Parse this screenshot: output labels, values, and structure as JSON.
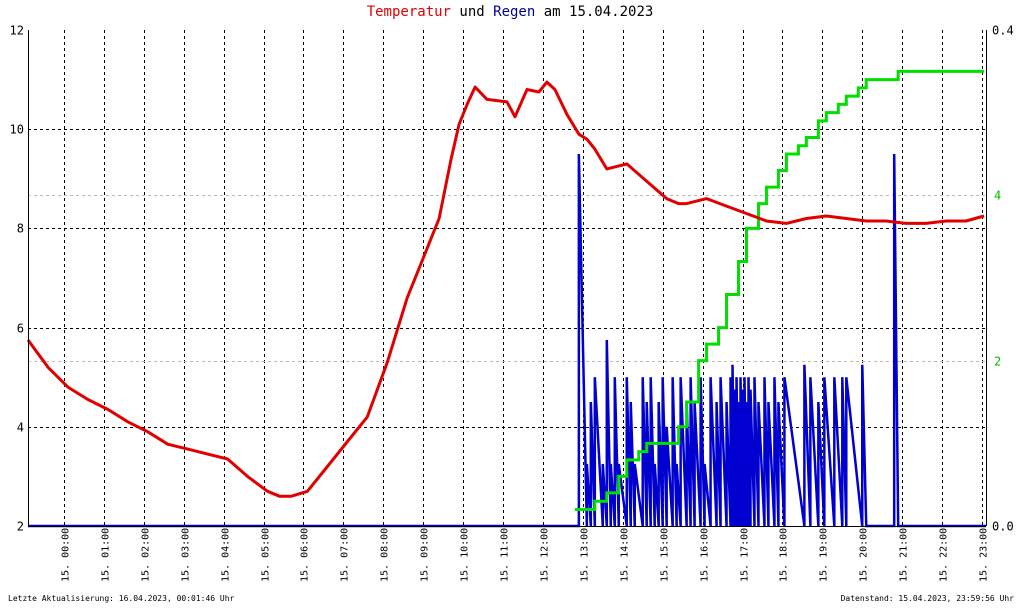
{
  "title": {
    "part1": "Temperatur",
    "part2": " und ",
    "part3": "Regen",
    "part4": " am 15.04.2023"
  },
  "footer": {
    "left": "Letzte Aktualisierung: 16.04.2023, 00:01:46 Uhr",
    "right": "Datenstand: 15.04.2023, 23:59:56 Uhr"
  },
  "colors": {
    "temperature": "#e00000",
    "rain_total": "#00e000",
    "rain_rate": "#0000d0",
    "grid": "#000000",
    "right_axis_upper": "#000000",
    "right_axis_lower": "#00c000"
  },
  "chart_data": {
    "type": "line",
    "grid": true,
    "x_ticks": [
      "15. 00:00",
      "15. 01:00",
      "15. 02:00",
      "15. 03:00",
      "15. 04:00",
      "15. 05:00",
      "15. 06:00",
      "15. 07:00",
      "15. 08:00",
      "15. 09:00",
      "15. 10:00",
      "15. 11:00",
      "15. 12:00",
      "15. 13:00",
      "15. 14:00",
      "15. 15:00",
      "15. 16:00",
      "15. 17:00",
      "15. 18:00",
      "15. 19:00",
      "15. 20:00",
      "15. 21:00",
      "15. 22:00",
      "15. 23:00"
    ],
    "xlim_hours": [
      0,
      24
    ],
    "left_axis": {
      "ylim": [
        2,
        12
      ],
      "ticks": [
        "2",
        "4",
        "6",
        "8",
        "10",
        "12"
      ]
    },
    "right_axis_upper": {
      "ylim": [
        0.0,
        0.4
      ],
      "ticks": [
        "0.0",
        "0.4"
      ]
    },
    "right_axis_lower": {
      "ylim": [
        0,
        6
      ],
      "ticks": [
        "2",
        "4"
      ]
    },
    "series": [
      {
        "name": "Temperatur",
        "axis": "left",
        "x_hours": [
          0.0,
          0.5,
          1.0,
          1.5,
          2.0,
          2.5,
          3.0,
          3.5,
          4.0,
          4.5,
          5.0,
          5.5,
          6.0,
          6.3,
          6.6,
          7.0,
          7.5,
          8.0,
          8.5,
          9.0,
          9.5,
          10.0,
          10.3,
          10.6,
          10.8,
          11.0,
          11.2,
          11.5,
          12.0,
          12.2,
          12.5,
          12.8,
          13.0,
          13.2,
          13.5,
          13.8,
          14.0,
          14.2,
          14.5,
          15.0,
          15.5,
          16.0,
          16.3,
          16.5,
          17.0,
          17.5,
          18.0,
          18.5,
          19.0,
          19.5,
          20.0,
          20.5,
          21.0,
          21.5,
          22.0,
          22.5,
          23.0,
          23.5,
          23.95
        ],
        "values": [
          5.75,
          5.2,
          4.8,
          4.55,
          4.35,
          4.1,
          3.9,
          3.65,
          3.55,
          3.45,
          3.35,
          3.0,
          2.7,
          2.6,
          2.6,
          2.7,
          3.2,
          3.7,
          4.2,
          5.3,
          6.6,
          7.6,
          8.2,
          9.4,
          10.1,
          10.5,
          10.85,
          10.6,
          10.55,
          10.25,
          10.8,
          10.75,
          10.95,
          10.8,
          10.3,
          9.9,
          9.8,
          9.6,
          9.2,
          9.3,
          8.95,
          8.6,
          8.5,
          8.5,
          8.6,
          8.45,
          8.3,
          8.15,
          8.1,
          8.2,
          8.25,
          8.2,
          8.15,
          8.15,
          8.1,
          8.1,
          8.15,
          8.15,
          8.25
        ]
      },
      {
        "name": "Regen",
        "axis": "right_upper",
        "x_hours": [
          0.0,
          13.7,
          13.8,
          14.0,
          14.1,
          14.2,
          14.4,
          14.5,
          14.6,
          14.7,
          14.8,
          15.0,
          15.1,
          15.2,
          15.4,
          15.5,
          15.6,
          15.7,
          15.8,
          15.9,
          16.0,
          16.15,
          16.25,
          16.35,
          16.5,
          16.6,
          16.7,
          16.85,
          16.95,
          17.1,
          17.25,
          17.35,
          17.5,
          17.6,
          17.65,
          17.7,
          17.75,
          17.8,
          17.85,
          17.9,
          17.95,
          18.0,
          18.05,
          18.1,
          18.2,
          18.3,
          18.45,
          18.55,
          18.7,
          18.8,
          18.95,
          19.45,
          19.6,
          19.8,
          19.95,
          20.2,
          20.4,
          20.5,
          20.9,
          21.0,
          21.7,
          21.8,
          22.0,
          24.0
        ],
        "values": [
          0.0,
          0.0,
          0.3,
          0.05,
          0.1,
          0.12,
          0.05,
          0.15,
          0.05,
          0.12,
          0.05,
          0.12,
          0.1,
          0.05,
          0.12,
          0.1,
          0.12,
          0.05,
          0.1,
          0.12,
          0.08,
          0.12,
          0.05,
          0.12,
          0.1,
          0.12,
          0.1,
          0.12,
          0.05,
          0.12,
          0.1,
          0.12,
          0.1,
          0.12,
          0.13,
          0.11,
          0.12,
          0.1,
          0.12,
          0.11,
          0.12,
          0.1,
          0.12,
          0.11,
          0.12,
          0.1,
          0.12,
          0.1,
          0.12,
          0.1,
          0.12,
          0.13,
          0.12,
          0.1,
          0.12,
          0.12,
          0.12,
          0.12,
          0.13,
          0.0,
          0.3,
          0.0,
          0.0,
          0.0
        ]
      },
      {
        "name": "Regen",
        "axis": "right_lower",
        "x_hours": [
          13.7,
          14.0,
          14.2,
          14.5,
          14.8,
          15.0,
          15.3,
          15.5,
          16.0,
          16.3,
          16.5,
          16.8,
          17.0,
          17.3,
          17.5,
          17.8,
          18.0,
          18.3,
          18.5,
          18.8,
          19.0,
          19.3,
          19.5,
          19.8,
          20.0,
          20.3,
          20.5,
          20.8,
          21.0,
          21.5,
          21.8,
          22.0,
          23.95
        ],
        "values": [
          0.2,
          0.2,
          0.3,
          0.4,
          0.6,
          0.8,
          0.9,
          1.0,
          1.0,
          1.2,
          1.5,
          2.0,
          2.2,
          2.4,
          2.8,
          3.2,
          3.6,
          3.9,
          4.1,
          4.3,
          4.5,
          4.6,
          4.7,
          4.9,
          5.0,
          5.1,
          5.2,
          5.3,
          5.4,
          5.4,
          5.5,
          5.5,
          5.5
        ]
      }
    ]
  }
}
